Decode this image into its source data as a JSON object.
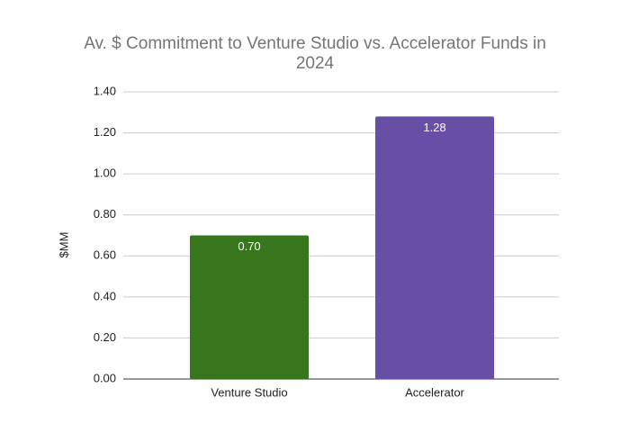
{
  "chart_data": {
    "type": "bar",
    "title": "Av. $ Commitment to Venture Studio vs. Accelerator Funds in 2024",
    "y_label": "$MM",
    "categories": [
      "Venture Studio",
      "Accelerator"
    ],
    "values": [
      0.7,
      1.28
    ],
    "value_labels": [
      "0.70",
      "1.28"
    ],
    "colors": [
      "#38761d",
      "#674ea7"
    ],
    "ylim": [
      0,
      1.4
    ],
    "yticks": [
      {
        "value": 0,
        "label": "0.00"
      },
      {
        "value": 0.2,
        "label": "0.20"
      },
      {
        "value": 0.4,
        "label": "0.40"
      },
      {
        "value": 0.6,
        "label": "0.60"
      },
      {
        "value": 0.8,
        "label": "0.80"
      },
      {
        "value": 1.0,
        "label": "1.00"
      },
      {
        "value": 1.2,
        "label": "1.20"
      },
      {
        "value": 1.4,
        "label": "1.40"
      }
    ],
    "grid": true
  }
}
